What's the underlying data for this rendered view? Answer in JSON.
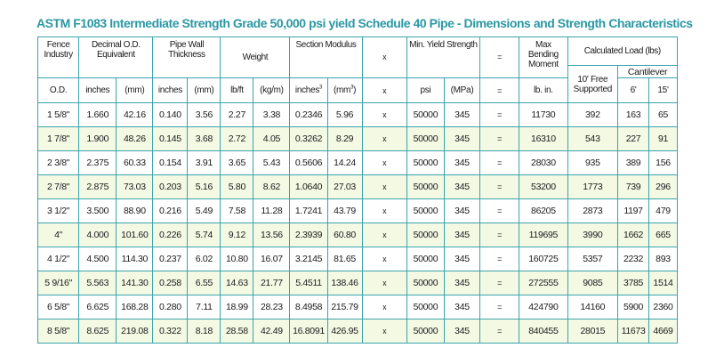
{
  "title": "ASTM F1083 Intermediate Strength Grade 50,000 psi yield Schedule 40 Pipe - Dimensions and Strength Characteristics",
  "headers": {
    "fence_industry": "Fence Industry",
    "decimal_od": "Decimal O.D. Equivalent",
    "pipe_wall": "Pipe Wall Thickness",
    "weight": "Weight",
    "section_modulus": "Section Modulus",
    "x": "x",
    "min_yield": "Min. Yield Strength",
    "equals": "=",
    "max_bending": "Max Bending Moment",
    "calculated_load": "Calculated Load (lbs)",
    "free_supported": "10' Free Supported",
    "cantilever": "Cantilever"
  },
  "units": {
    "od": "O.D.",
    "inches": "inches",
    "mm": "(mm)",
    "inches2": "inches",
    "mm2": "(mm)",
    "lbft": "lb/ft",
    "kgm": "(kg/m)",
    "inches3": "inches",
    "inches3_sup": "3",
    "mm3": "(mm",
    "mm3_sup": "3",
    "mm3_close": ")",
    "x": "x",
    "psi": "psi",
    "mpa": "(MPa)",
    "equals": "=",
    "lbin": "lb. in.",
    "ft6": "6'",
    "ft15": "15'"
  },
  "rows": [
    [
      "1 5/8\"",
      "1.660",
      "42.16",
      "0.140",
      "3.56",
      "2.27",
      "3.38",
      "0.2346",
      "5.96",
      "x",
      "50000",
      "345",
      "=",
      "11730",
      "392",
      "163",
      "65"
    ],
    [
      "1 7/8\"",
      "1.900",
      "48.26",
      "0.145",
      "3.68",
      "2.72",
      "4.05",
      "0.3262",
      "8.29",
      "x",
      "50000",
      "345",
      "=",
      "16310",
      "543",
      "227",
      "91"
    ],
    [
      "2 3/8\"",
      "2.375",
      "60.33",
      "0.154",
      "3.91",
      "3.65",
      "5.43",
      "0.5606",
      "14.24",
      "x",
      "50000",
      "345",
      "=",
      "28030",
      "935",
      "389",
      "156"
    ],
    [
      "2 7/8\"",
      "2.875",
      "73.03",
      "0.203",
      "5.16",
      "5.80",
      "8.62",
      "1.0640",
      "27.03",
      "x",
      "50000",
      "345",
      "=",
      "53200",
      "1773",
      "739",
      "296"
    ],
    [
      "3 1/2\"",
      "3.500",
      "88.90",
      "0.216",
      "5.49",
      "7.58",
      "11.28",
      "1.7241",
      "43.79",
      "x",
      "50000",
      "345",
      "=",
      "86205",
      "2873",
      "1197",
      "479"
    ],
    [
      "4\"",
      "4.000",
      "101.60",
      "0.226",
      "5.74",
      "9.12",
      "13.56",
      "2.3939",
      "60.80",
      "x",
      "50000",
      "345",
      "=",
      "119695",
      "3990",
      "1662",
      "665"
    ],
    [
      "4 1/2\"",
      "4.500",
      "114.30",
      "0.237",
      "6.02",
      "10.80",
      "16.07",
      "3.2145",
      "81.65",
      "x",
      "50000",
      "345",
      "=",
      "160725",
      "5357",
      "2232",
      "893"
    ],
    [
      "5 9/16\"",
      "5.563",
      "141.30",
      "0.258",
      "6.55",
      "14.63",
      "21.77",
      "5.4511",
      "138.46",
      "x",
      "50000",
      "345",
      "=",
      "272555",
      "9085",
      "3785",
      "1514"
    ],
    [
      "6 5/8\"",
      "6.625",
      "168.28",
      "0.280",
      "7.11",
      "18.99",
      "28.23",
      "8.4958",
      "215.79",
      "x",
      "50000",
      "345",
      "=",
      "424790",
      "14160",
      "5900",
      "2360"
    ],
    [
      "8 5/8\"",
      "8.625",
      "219.08",
      "0.322",
      "8.18",
      "28.58",
      "42.49",
      "16.8091",
      "426.95",
      "x",
      "50000",
      "345",
      "=",
      "840455",
      "28015",
      "11673",
      "4669"
    ]
  ],
  "colors": {
    "title": "#2a98a3",
    "border": "#3aa3ad",
    "alt_row": "#f4f9e4"
  }
}
